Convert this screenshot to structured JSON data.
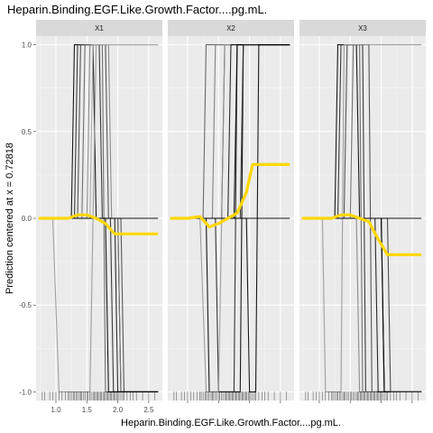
{
  "chart_data": {
    "type": "line",
    "title": "Heparin.Binding.EGF.Like.Growth.Factor....pg.mL.",
    "xlabel": "Heparin.Binding.EGF.Like.Growth.Factor....pg.mL.",
    "ylabel": "Prediction centered at x = 0.72818",
    "xlim": [
      0.68,
      2.72
    ],
    "ylim": [
      -1.05,
      1.05
    ],
    "x_ticks": [
      1.0,
      1.5,
      2.0,
      2.5
    ],
    "x_tick_labels": [
      "1.0",
      "1.5",
      "2.0",
      "2.5"
    ],
    "y_ticks": [
      1.0,
      0.5,
      0.0,
      -0.5,
      -1.0
    ],
    "y_tick_labels": [
      "1.0",
      "0.5",
      "0.0",
      "-0.5",
      "-1.0"
    ],
    "grid": true,
    "ice_color": "#000000",
    "pdp_color": "#FFD700",
    "facets": [
      {
        "label": "X1",
        "ice_curves": [
          {
            "gray": 0.0,
            "points": [
              [
                0.72,
                0
              ],
              [
                1.25,
                0
              ],
              [
                1.3,
                1
              ],
              [
                1.6,
                1
              ],
              [
                1.65,
                0
              ],
              [
                2.0,
                0
              ],
              [
                2.05,
                -1
              ],
              [
                2.65,
                -1
              ]
            ]
          },
          {
            "gray": 0.2,
            "points": [
              [
                0.72,
                0
              ],
              [
                1.3,
                0
              ],
              [
                1.35,
                1
              ],
              [
                1.7,
                1
              ],
              [
                1.75,
                0
              ],
              [
                1.88,
                0
              ],
              [
                1.93,
                -1
              ],
              [
                2.65,
                -1
              ]
            ]
          },
          {
            "gray": 0.35,
            "points": [
              [
                0.72,
                0
              ],
              [
                1.35,
                0
              ],
              [
                1.4,
                1
              ],
              [
                1.8,
                1
              ],
              [
                1.85,
                0
              ],
              [
                2.05,
                0
              ],
              [
                2.1,
                -1
              ],
              [
                2.65,
                -1
              ]
            ]
          },
          {
            "gray": 0.5,
            "points": [
              [
                0.72,
                0
              ],
              [
                1.42,
                0
              ],
              [
                1.47,
                1
              ],
              [
                1.75,
                1
              ],
              [
                1.8,
                -1
              ],
              [
                2.65,
                -1
              ]
            ]
          },
          {
            "gray": 0.65,
            "points": [
              [
                0.72,
                0
              ],
              [
                1.5,
                0
              ],
              [
                1.55,
                1
              ],
              [
                1.85,
                1
              ],
              [
                1.9,
                0
              ],
              [
                2.0,
                0
              ],
              [
                2.05,
                -1
              ],
              [
                2.65,
                -1
              ]
            ]
          },
          {
            "gray": 0.75,
            "points": [
              [
                0.72,
                0
              ],
              [
                0.95,
                0
              ],
              [
                1.05,
                -1
              ],
              [
                1.55,
                -1
              ],
              [
                1.65,
                1
              ],
              [
                2.65,
                1
              ]
            ]
          },
          {
            "gray": 0.85,
            "points": [
              [
                0.72,
                0
              ],
              [
                1.55,
                0
              ],
              [
                1.6,
                1
              ],
              [
                1.95,
                1
              ],
              [
                2.0,
                1
              ],
              [
                2.65,
                1
              ]
            ]
          },
          {
            "gray": 0.1,
            "points": [
              [
                0.72,
                0
              ],
              [
                1.95,
                0
              ],
              [
                2.0,
                -1
              ],
              [
                2.65,
                -1
              ]
            ]
          },
          {
            "gray": 0.0,
            "points": [
              [
                0.72,
                0
              ],
              [
                1.8,
                0
              ],
              [
                1.85,
                -1
              ],
              [
                2.65,
                -1
              ]
            ]
          },
          {
            "gray": 0.0,
            "points": [
              [
                0.72,
                0
              ],
              [
                2.65,
                0
              ]
            ]
          }
        ],
        "pdp": [
          [
            0.72,
            0
          ],
          [
            1.0,
            0
          ],
          [
            1.2,
            0
          ],
          [
            1.35,
            0.02
          ],
          [
            1.5,
            0.02
          ],
          [
            1.65,
            0
          ],
          [
            1.8,
            -0.03
          ],
          [
            1.95,
            -0.09
          ],
          [
            2.1,
            -0.09
          ],
          [
            2.65,
            -0.09
          ]
        ]
      },
      {
        "label": "X2",
        "ice_curves": [
          {
            "gray": 0.0,
            "points": [
              [
                0.72,
                0
              ],
              [
                1.3,
                0
              ],
              [
                1.35,
                -1
              ],
              [
                1.85,
                -1
              ],
              [
                1.9,
                1
              ],
              [
                2.65,
                1
              ]
            ]
          },
          {
            "gray": 0.15,
            "points": [
              [
                0.72,
                0
              ],
              [
                1.45,
                0
              ],
              [
                1.5,
                -1
              ],
              [
                1.75,
                -1
              ],
              [
                1.8,
                1
              ],
              [
                2.65,
                1
              ]
            ]
          },
          {
            "gray": 0.3,
            "points": [
              [
                0.72,
                0
              ],
              [
                1.55,
                0
              ],
              [
                1.6,
                1
              ],
              [
                2.65,
                1
              ]
            ]
          },
          {
            "gray": 0.45,
            "points": [
              [
                0.72,
                0
              ],
              [
                1.25,
                0
              ],
              [
                1.3,
                1
              ],
              [
                2.65,
                1
              ]
            ]
          },
          {
            "gray": 0.6,
            "points": [
              [
                0.72,
                0
              ],
              [
                1.4,
                0
              ],
              [
                1.45,
                1
              ],
              [
                2.65,
                1
              ]
            ]
          },
          {
            "gray": 0.75,
            "points": [
              [
                0.72,
                0
              ],
              [
                1.2,
                0
              ],
              [
                1.3,
                -1
              ],
              [
                1.5,
                -1
              ],
              [
                1.6,
                1
              ],
              [
                2.65,
                1
              ]
            ]
          },
          {
            "gray": 0.1,
            "points": [
              [
                0.72,
                0
              ],
              [
                1.65,
                0
              ],
              [
                1.7,
                1
              ],
              [
                2.65,
                1
              ]
            ]
          },
          {
            "gray": 0.0,
            "points": [
              [
                0.72,
                0
              ],
              [
                1.75,
                0
              ],
              [
                1.8,
                1
              ],
              [
                2.65,
                1
              ]
            ]
          },
          {
            "gray": 0.2,
            "points": [
              [
                0.72,
                0
              ],
              [
                1.85,
                0
              ],
              [
                1.9,
                1
              ],
              [
                2.65,
                1
              ]
            ]
          },
          {
            "gray": 0.0,
            "points": [
              [
                0.72,
                0
              ],
              [
                1.95,
                0
              ],
              [
                2.0,
                -1
              ],
              [
                2.1,
                -1
              ],
              [
                2.15,
                1
              ],
              [
                2.65,
                1
              ]
            ]
          },
          {
            "gray": 0.0,
            "points": [
              [
                0.72,
                0
              ],
              [
                2.65,
                0
              ]
            ]
          }
        ],
        "pdp": [
          [
            0.72,
            0
          ],
          [
            1.0,
            0
          ],
          [
            1.2,
            0.01
          ],
          [
            1.35,
            -0.05
          ],
          [
            1.5,
            -0.03
          ],
          [
            1.65,
            0
          ],
          [
            1.8,
            0.03
          ],
          [
            1.95,
            0.15
          ],
          [
            2.05,
            0.31
          ],
          [
            2.65,
            0.31
          ]
        ]
      },
      {
        "label": "X3",
        "ice_curves": [
          {
            "gray": 0.0,
            "points": [
              [
                0.72,
                0
              ],
              [
                1.25,
                0
              ],
              [
                1.3,
                1
              ],
              [
                1.6,
                1
              ],
              [
                1.65,
                0
              ],
              [
                2.0,
                0
              ],
              [
                2.05,
                -1
              ],
              [
                2.65,
                -1
              ]
            ]
          },
          {
            "gray": 0.2,
            "points": [
              [
                0.72,
                0
              ],
              [
                1.3,
                0
              ],
              [
                1.35,
                1
              ],
              [
                1.7,
                1
              ],
              [
                1.75,
                -1
              ],
              [
                2.65,
                -1
              ]
            ]
          },
          {
            "gray": 0.35,
            "points": [
              [
                0.72,
                0
              ],
              [
                1.4,
                0
              ],
              [
                1.45,
                1
              ],
              [
                1.8,
                1
              ],
              [
                1.85,
                -1
              ],
              [
                2.65,
                -1
              ]
            ]
          },
          {
            "gray": 0.5,
            "points": [
              [
                0.72,
                0
              ],
              [
                1.5,
                0
              ],
              [
                1.55,
                1
              ],
              [
                1.65,
                1
              ],
              [
                1.7,
                -1
              ],
              [
                2.65,
                -1
              ]
            ]
          },
          {
            "gray": 0.65,
            "points": [
              [
                0.72,
                0
              ],
              [
                1.6,
                0
              ],
              [
                1.65,
                -1
              ],
              [
                2.65,
                -1
              ]
            ]
          },
          {
            "gray": 0.75,
            "points": [
              [
                0.72,
                0
              ],
              [
                1.05,
                0
              ],
              [
                1.1,
                -1
              ],
              [
                1.35,
                -1
              ],
              [
                1.4,
                1
              ],
              [
                2.65,
                1
              ]
            ]
          },
          {
            "gray": 0.1,
            "points": [
              [
                0.72,
                0
              ],
              [
                1.9,
                0
              ],
              [
                1.95,
                -1
              ],
              [
                2.65,
                -1
              ]
            ]
          },
          {
            "gray": 0.0,
            "points": [
              [
                0.72,
                0
              ],
              [
                2.0,
                0
              ],
              [
                2.05,
                -1
              ],
              [
                2.65,
                -1
              ]
            ]
          },
          {
            "gray": 0.3,
            "points": [
              [
                0.72,
                0
              ],
              [
                2.1,
                0
              ],
              [
                2.15,
                -1
              ],
              [
                2.65,
                -1
              ]
            ]
          },
          {
            "gray": 0.0,
            "points": [
              [
                0.72,
                0
              ],
              [
                2.65,
                0
              ]
            ]
          }
        ],
        "pdp": [
          [
            0.72,
            0
          ],
          [
            1.0,
            0
          ],
          [
            1.2,
            0
          ],
          [
            1.35,
            0.02
          ],
          [
            1.5,
            0.02
          ],
          [
            1.65,
            0
          ],
          [
            1.8,
            -0.02
          ],
          [
            1.95,
            -0.12
          ],
          [
            2.1,
            -0.21
          ],
          [
            2.65,
            -0.21
          ]
        ]
      }
    ],
    "rug": [
      0.78,
      0.82,
      0.9,
      0.95,
      1.0,
      1.05,
      1.1,
      1.15,
      1.2,
      1.22,
      1.25,
      1.28,
      1.3,
      1.33,
      1.35,
      1.38,
      1.4,
      1.42,
      1.45,
      1.47,
      1.5,
      1.52,
      1.55,
      1.57,
      1.6,
      1.62,
      1.64,
      1.66,
      1.68,
      1.7,
      1.72,
      1.74,
      1.76,
      1.78,
      1.8,
      1.82,
      1.84,
      1.86,
      1.88,
      1.9,
      1.92,
      1.94,
      1.96,
      1.98,
      2.0,
      2.02,
      2.05,
      2.08,
      2.1,
      2.15,
      2.2,
      2.25,
      2.3,
      2.4,
      2.5,
      2.6
    ]
  }
}
